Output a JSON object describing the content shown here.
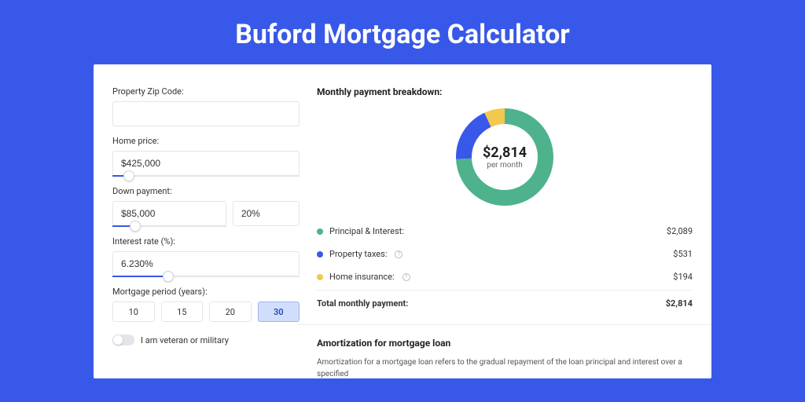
{
  "colors": {
    "page_bg": "#3858e9",
    "card_bg": "#ffffff",
    "accent": "#3858e9",
    "principal": "#4eb38d",
    "taxes": "#3858e9",
    "insurance": "#f2c94c",
    "border": "#e3e5ea"
  },
  "header": {
    "title": "Buford Mortgage Calculator"
  },
  "form": {
    "zip": {
      "label": "Property Zip Code:",
      "value": ""
    },
    "home_price": {
      "label": "Home price:",
      "value": "$425,000",
      "slider_pct": 9
    },
    "down_payment": {
      "label": "Down payment:",
      "amount": "$85,000",
      "percent": "20%",
      "slider_pct": 20
    },
    "interest_rate": {
      "label": "Interest rate (%):",
      "value": "6.230%",
      "slider_pct": 30
    },
    "mortgage_period": {
      "label": "Mortgage period (years):",
      "options": [
        "10",
        "15",
        "20",
        "30"
      ],
      "selected": "30"
    },
    "veteran": {
      "label": "I am veteran or military",
      "checked": false
    }
  },
  "breakdown": {
    "title": "Monthly payment breakdown:",
    "donut": {
      "center_value": "$2,814",
      "center_sub": "per month",
      "slices": [
        {
          "name": "principal",
          "value": 2089,
          "color": "#4eb38d"
        },
        {
          "name": "taxes",
          "value": 531,
          "color": "#3858e9"
        },
        {
          "name": "insurance",
          "value": 194,
          "color": "#f2c94c"
        }
      ],
      "total": 2814,
      "radius": 52,
      "stroke_width": 20
    },
    "rows": [
      {
        "label": "Principal & Interest:",
        "color": "#4eb38d",
        "value": "$2,089",
        "info": false
      },
      {
        "label": "Property taxes:",
        "color": "#3858e9",
        "value": "$531",
        "info": true
      },
      {
        "label": "Home insurance:",
        "color": "#f2c94c",
        "value": "$194",
        "info": true
      }
    ],
    "total_row": {
      "label": "Total monthly payment:",
      "value": "$2,814"
    }
  },
  "amortization": {
    "title": "Amortization for mortgage loan",
    "text": "Amortization for a mortgage loan refers to the gradual repayment of the loan principal and interest over a specified"
  }
}
